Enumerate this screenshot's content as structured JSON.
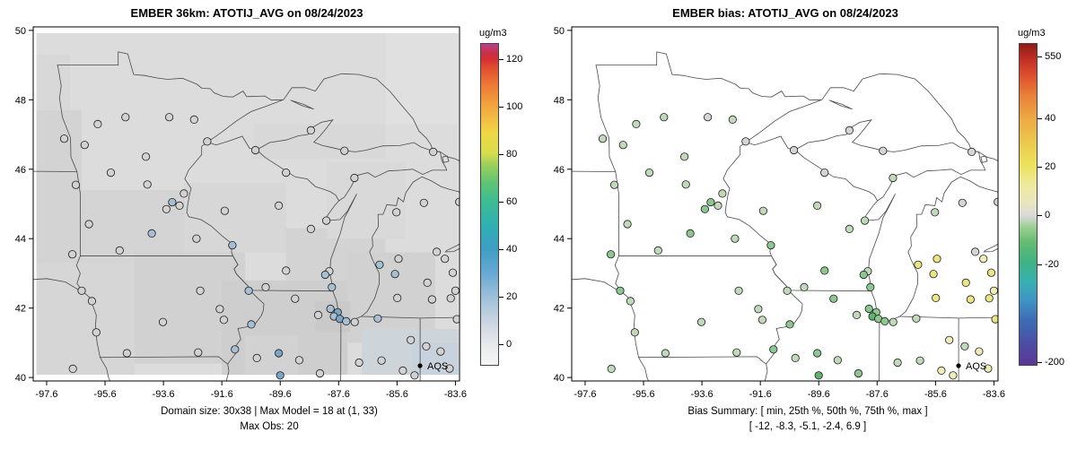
{
  "chart_data": {
    "type": "map-scatter",
    "lon_range": [
      -98.06,
      -83.46
    ],
    "lat_range": [
      39.9,
      50.1
    ],
    "palette": {
      "g": "#d2d2d2",
      "b1": "#a6bfd3",
      "b2": "#7ca4c4",
      "gr": "#d5d5d5",
      "lg": "#bfd9b9",
      "mg": "#8cc690",
      "dg": "#5fb36a",
      "yl": "#ebe483",
      "ly": "#f0ecb9"
    },
    "sites": [
      [
        -97.0,
        46.88,
        "g",
        "lg"
      ],
      [
        -96.3,
        46.7,
        "g",
        "lg"
      ],
      [
        -95.85,
        47.3,
        "g",
        "lg"
      ],
      [
        -94.9,
        47.5,
        "g",
        "lg"
      ],
      [
        -93.4,
        47.5,
        "g",
        "gr"
      ],
      [
        -92.55,
        47.43,
        "g",
        "lg"
      ],
      [
        -92.1,
        46.8,
        "g",
        "gr"
      ],
      [
        -94.2,
        46.36,
        "g",
        "lg"
      ],
      [
        -95.4,
        45.9,
        "g",
        "lg"
      ],
      [
        -96.6,
        45.55,
        "g",
        "lg"
      ],
      [
        -94.15,
        45.56,
        "g",
        "lg"
      ],
      [
        -93.3,
        45.05,
        "b1",
        "mg"
      ],
      [
        -93.05,
        44.95,
        "g",
        "lg"
      ],
      [
        -93.5,
        44.85,
        "g",
        "mg"
      ],
      [
        -92.9,
        45.3,
        "g",
        "lg"
      ],
      [
        -94.0,
        44.15,
        "b1",
        "mg"
      ],
      [
        -92.47,
        44.0,
        "g",
        "lg"
      ],
      [
        -96.15,
        44.42,
        "g",
        "lg"
      ],
      [
        -96.72,
        43.55,
        "g",
        "mg"
      ],
      [
        -95.1,
        43.66,
        "g",
        "lg"
      ],
      [
        -91.24,
        43.81,
        "b1",
        "mg"
      ],
      [
        -91.5,
        44.8,
        "g",
        "lg"
      ],
      [
        -89.65,
        44.95,
        "g",
        "lg"
      ],
      [
        -89.4,
        45.9,
        "g",
        "gr"
      ],
      [
        -88.02,
        44.52,
        "g",
        "lg"
      ],
      [
        -88.55,
        44.28,
        "g",
        "lg"
      ],
      [
        -87.92,
        43.06,
        "g",
        "lg"
      ],
      [
        -88.06,
        42.96,
        "b1",
        "mg"
      ],
      [
        -87.83,
        42.6,
        "b1",
        "mg"
      ],
      [
        -89.4,
        43.08,
        "g",
        "mg"
      ],
      [
        -90.1,
        42.6,
        "g",
        "lg"
      ],
      [
        -90.45,
        46.55,
        "g",
        "gr"
      ],
      [
        -88.55,
        47.12,
        "g",
        "gr"
      ],
      [
        -87.4,
        46.53,
        "g",
        "gr"
      ],
      [
        -84.36,
        46.5,
        "g",
        "gr"
      ],
      [
        -87.06,
        45.75,
        "g",
        "lg"
      ],
      [
        -85.62,
        44.76,
        "g",
        "lg"
      ],
      [
        -84.68,
        45.03,
        "g",
        "gr"
      ],
      [
        -83.47,
        45.06,
        "g",
        "gr"
      ],
      [
        -85.67,
        42.98,
        "b1",
        "yl"
      ],
      [
        -86.2,
        43.25,
        "b1",
        "yl"
      ],
      [
        -85.55,
        43.42,
        "g",
        "yl"
      ],
      [
        -85.59,
        42.29,
        "g",
        "yl"
      ],
      [
        -84.56,
        42.73,
        "g",
        "yl"
      ],
      [
        -84.4,
        42.25,
        "g",
        "yl"
      ],
      [
        -83.76,
        42.28,
        "g",
        "yl"
      ],
      [
        -83.69,
        43.02,
        "g",
        "yl"
      ],
      [
        -83.96,
        43.42,
        "g",
        "ly"
      ],
      [
        -84.24,
        43.62,
        "g",
        "gr"
      ],
      [
        -83.6,
        42.5,
        "g",
        "ly"
      ],
      [
        -93.62,
        41.6,
        "g",
        "lg"
      ],
      [
        -91.67,
        41.97,
        "g",
        "lg"
      ],
      [
        -91.53,
        41.66,
        "g",
        "lg"
      ],
      [
        -90.59,
        41.53,
        "b1",
        "mg"
      ],
      [
        -90.68,
        42.5,
        "b1",
        "lg"
      ],
      [
        -92.34,
        42.5,
        "g",
        "lg"
      ],
      [
        -96.4,
        42.5,
        "g",
        "mg"
      ],
      [
        -95.9,
        41.3,
        "g",
        "lg"
      ],
      [
        -94.85,
        40.7,
        "g",
        "lg"
      ],
      [
        -91.15,
        40.81,
        "b1",
        "mg"
      ],
      [
        -92.41,
        40.72,
        "g",
        "lg"
      ],
      [
        -89.09,
        42.27,
        "g",
        "mg"
      ],
      [
        -87.88,
        41.98,
        "b1",
        "mg"
      ],
      [
        -87.63,
        41.88,
        "b2",
        "mg"
      ],
      [
        -87.76,
        41.76,
        "b1",
        "dg"
      ],
      [
        -87.56,
        41.69,
        "b2",
        "mg"
      ],
      [
        -88.3,
        41.8,
        "g",
        "lg"
      ],
      [
        -89.65,
        40.7,
        "b2",
        "mg"
      ],
      [
        -88.95,
        40.5,
        "g",
        "lg"
      ],
      [
        -88.24,
        40.12,
        "g",
        "mg"
      ],
      [
        -89.6,
        40.06,
        "b2",
        "dg"
      ],
      [
        -90.4,
        40.56,
        "g",
        "lg"
      ],
      [
        -87.34,
        41.62,
        "b1",
        "mg"
      ],
      [
        -87.05,
        41.6,
        "g",
        "lg"
      ],
      [
        -86.26,
        41.7,
        "b1",
        "lg"
      ],
      [
        -85.13,
        41.08,
        "g",
        "ly"
      ],
      [
        -86.13,
        40.49,
        "g",
        "lg"
      ],
      [
        -86.9,
        40.43,
        "g",
        "lg"
      ],
      [
        -85.4,
        40.2,
        "g",
        "ly"
      ],
      [
        -85.0,
        40.06,
        "g",
        "ly"
      ],
      [
        -83.55,
        41.68,
        "g",
        "yl"
      ],
      [
        -84.11,
        40.75,
        "g",
        "ly"
      ],
      [
        -83.8,
        40.26,
        "g",
        "ly"
      ],
      [
        -84.6,
        40.9,
        "g",
        "lg"
      ],
      [
        -96.7,
        40.25,
        "g",
        "lg"
      ],
      [
        -96.05,
        42.2,
        "g",
        "lg"
      ]
    ],
    "panels": [
      {
        "title": "EMBER 36km: ATOTIJ_AVG on 08/24/2023",
        "color_index": 2,
        "legend": "AQS",
        "captions": [
          "Domain size: 30x38 | Max Model = 18 at (1, 33)",
          "Max Obs: 20"
        ],
        "axis": {
          "x_ticks": [
            "-97.6",
            "-95.6",
            "-93.6",
            "-91.6",
            "-89.6",
            "-87.6",
            "-85.6",
            "-83.6"
          ],
          "y_ticks": [
            "40",
            "42",
            "44",
            "46",
            "48",
            "50"
          ]
        },
        "colorbar": {
          "label": "ug/m3",
          "ticks": [
            {
              "label": "0",
              "f": 0.067
            },
            {
              "label": "20",
              "f": 0.214
            },
            {
              "label": "40",
              "f": 0.361
            },
            {
              "label": "60",
              "f": 0.508
            },
            {
              "label": "80",
              "f": 0.655
            },
            {
              "label": "100",
              "f": 0.802
            },
            {
              "label": "120",
              "f": 0.95
            }
          ],
          "stops": [
            [
              0.0,
              "#f5f5f5"
            ],
            [
              0.06,
              "#e9eaec"
            ],
            [
              0.13,
              "#ccd6e2"
            ],
            [
              0.21,
              "#9fc0da"
            ],
            [
              0.29,
              "#64a8d2"
            ],
            [
              0.36,
              "#3e9ec4"
            ],
            [
              0.43,
              "#2fafb4"
            ],
            [
              0.51,
              "#3cbd92"
            ],
            [
              0.57,
              "#63c472"
            ],
            [
              0.62,
              "#97cf5b"
            ],
            [
              0.66,
              "#d8dd4d"
            ],
            [
              0.72,
              "#efd945"
            ],
            [
              0.8,
              "#f2a93f"
            ],
            [
              0.87,
              "#ee7a35"
            ],
            [
              0.93,
              "#e04a30"
            ],
            [
              0.95,
              "#d63030"
            ],
            [
              0.97,
              "#c92f45"
            ],
            [
              1.0,
              "#bb3f8d"
            ]
          ]
        },
        "raster": [
          [
            -97.95,
            40.08,
            -83.5,
            49.92,
            "#dcdcdc"
          ],
          [
            -97.95,
            43.3,
            -96.4,
            47.7,
            "#d3d3d3"
          ],
          [
            -96.4,
            42.9,
            -92.9,
            45.4,
            "#d4d4d4"
          ],
          [
            -97.95,
            40.08,
            -94.6,
            43.3,
            "#d6d6d6"
          ],
          [
            -94.6,
            40.4,
            -90.8,
            43.6,
            "#d1d1d1"
          ],
          [
            -92.9,
            43.6,
            -89.4,
            45.6,
            "#d7d7d7"
          ],
          [
            -91.6,
            40.08,
            -87.3,
            42.8,
            "#cecece"
          ],
          [
            -89.4,
            42.8,
            -86.0,
            44.3,
            "#d3d3d3"
          ],
          [
            -87.3,
            41.0,
            -84.3,
            43.6,
            "#d1d1d1"
          ],
          [
            -86.8,
            40.08,
            -83.5,
            41.4,
            "#cdd4da"
          ],
          [
            -85.1,
            40.08,
            -83.5,
            41.0,
            "#c8d2dc"
          ],
          [
            -88.0,
            44.0,
            -85.3,
            46.2,
            "#d9d9d9"
          ],
          [
            -97.95,
            47.7,
            -96.8,
            49.3,
            "#d8d8d8"
          ],
          [
            -88.4,
            41.3,
            -87.2,
            42.2,
            "#c9c9c9"
          ],
          [
            -90.8,
            40.08,
            -89.0,
            41.2,
            "#d2d2d2"
          ],
          [
            -86.0,
            47.3,
            -83.5,
            49.92,
            "#e0e0e0"
          ],
          [
            -90.5,
            46.3,
            -86.0,
            47.3,
            "#d8d8d8"
          ]
        ]
      },
      {
        "title": "EMBER bias: ATOTIJ_AVG on 08/24/2023",
        "color_index": 3,
        "legend": "AQS",
        "captions": [
          "Bias Summary: [ min, 25th %, 50th %, 75th %, max ]",
          "[ -12,  -8.3,  -5.1,  -2.4,  6.9 ]"
        ],
        "axis": {
          "x_ticks": [
            "-97.6",
            "-95.6",
            "-93.6",
            "-91.6",
            "-89.6",
            "-87.6",
            "-85.6",
            "-83.6"
          ],
          "y_ticks": [
            "40",
            "42",
            "44",
            "46",
            "48",
            "50"
          ]
        },
        "colorbar": {
          "label": "ug/m3",
          "ticks": [
            {
              "label": "550",
              "f": 0.958
            },
            {
              "label": "40",
              "f": 0.767
            },
            {
              "label": "20",
              "f": 0.616
            },
            {
              "label": "0",
              "f": 0.466
            },
            {
              "label": "-20",
              "f": 0.315
            },
            {
              "label": "-200",
              "f": 0.012
            }
          ],
          "stops": [
            [
              0.0,
              "#5b3794"
            ],
            [
              0.07,
              "#4a4fa5"
            ],
            [
              0.14,
              "#3d6cb5"
            ],
            [
              0.2,
              "#3f93c4"
            ],
            [
              0.26,
              "#37b1b2"
            ],
            [
              0.32,
              "#3fb284"
            ],
            [
              0.38,
              "#62bb72"
            ],
            [
              0.43,
              "#9ccf92"
            ],
            [
              0.465,
              "#d9d9d9"
            ],
            [
              0.5,
              "#e7e5c2"
            ],
            [
              0.56,
              "#efeaa0"
            ],
            [
              0.62,
              "#ece25e"
            ],
            [
              0.69,
              "#ecca4e"
            ],
            [
              0.77,
              "#eda843"
            ],
            [
              0.84,
              "#e97f39"
            ],
            [
              0.9,
              "#dd502e"
            ],
            [
              0.95,
              "#c42f24"
            ],
            [
              1.0,
              "#8f1b17"
            ]
          ]
        }
      }
    ]
  }
}
